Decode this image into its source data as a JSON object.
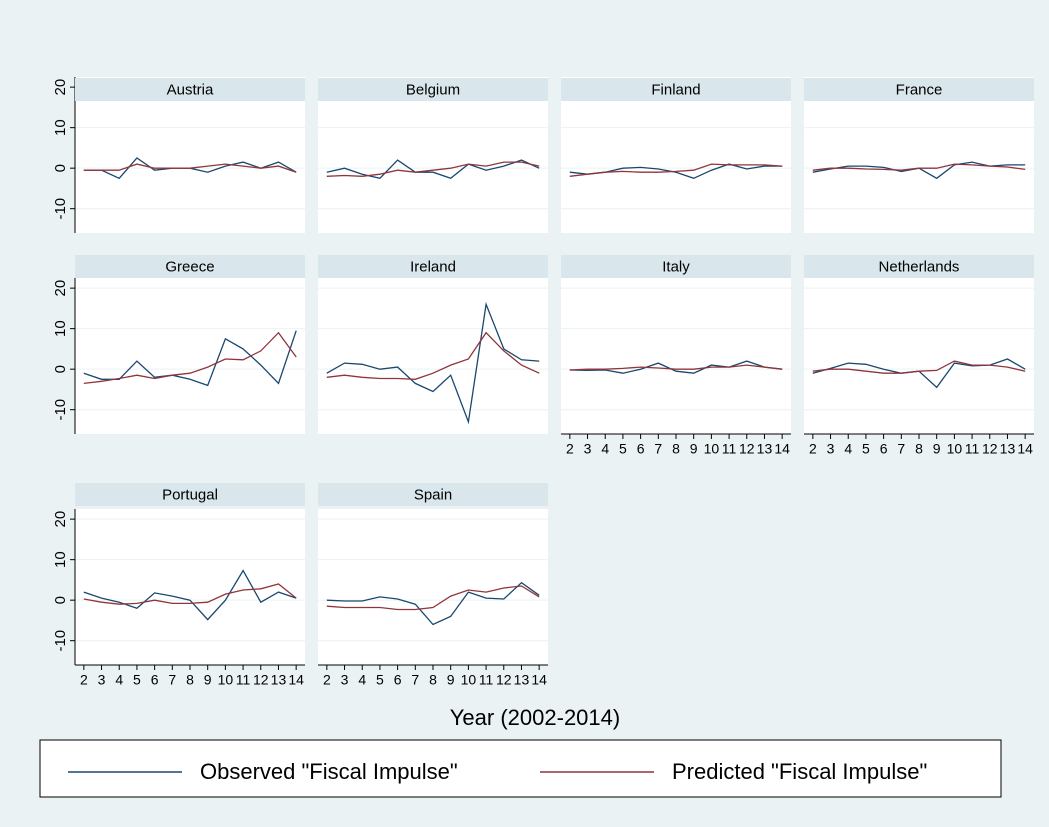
{
  "chart_data": [
    {
      "type": "line",
      "title": "Austria",
      "x": [
        2,
        3,
        4,
        5,
        6,
        7,
        8,
        9,
        10,
        11,
        12,
        13,
        14
      ],
      "xlim": [
        1.5,
        14.5
      ],
      "xticks": [
        2,
        3,
        4,
        5,
        6,
        7,
        8,
        9,
        10,
        11,
        12,
        13,
        14
      ],
      "ylim": [
        -16,
        22.5
      ],
      "yticks": [
        -10,
        0,
        10,
        20
      ],
      "grid": true,
      "series": [
        {
          "name": "Observed \"Fiscal Impulse\"",
          "color": "#1a476f",
          "values": [
            -0.5,
            -0.5,
            -2.5,
            2.5,
            -0.5,
            0,
            0,
            -1,
            0.5,
            1.5,
            0,
            1.5,
            -1
          ]
        },
        {
          "name": "Predicted \"Fiscal Impulse\"",
          "color": "#90353b",
          "values": [
            -0.5,
            -0.5,
            -0.5,
            1,
            0,
            0,
            0,
            0.5,
            1,
            0.5,
            0,
            0.5,
            -1
          ]
        }
      ]
    },
    {
      "type": "line",
      "title": "Belgium",
      "x": [
        2,
        3,
        4,
        5,
        6,
        7,
        8,
        9,
        10,
        11,
        12,
        13,
        14
      ],
      "xlim": [
        1.5,
        14.5
      ],
      "xticks": [
        2,
        3,
        4,
        5,
        6,
        7,
        8,
        9,
        10,
        11,
        12,
        13,
        14
      ],
      "ylim": [
        -16,
        22.5
      ],
      "yticks": [
        -10,
        0,
        10,
        20
      ],
      "grid": true,
      "series": [
        {
          "name": "Observed \"Fiscal Impulse\"",
          "color": "#1a476f",
          "values": [
            -1,
            0,
            -1.5,
            -2.5,
            2,
            -1,
            -1,
            -2.5,
            1,
            -0.5,
            0.5,
            2,
            0
          ]
        },
        {
          "name": "Predicted \"Fiscal Impulse\"",
          "color": "#90353b",
          "values": [
            -2,
            -1.8,
            -2,
            -1.5,
            -0.5,
            -1,
            -0.5,
            0,
            1,
            0.5,
            1.5,
            1.5,
            0.5
          ]
        }
      ]
    },
    {
      "type": "line",
      "title": "Finland",
      "x": [
        2,
        3,
        4,
        5,
        6,
        7,
        8,
        9,
        10,
        11,
        12,
        13,
        14
      ],
      "xlim": [
        1.5,
        14.5
      ],
      "xticks": [
        2,
        3,
        4,
        5,
        6,
        7,
        8,
        9,
        10,
        11,
        12,
        13,
        14
      ],
      "ylim": [
        -16,
        22.5
      ],
      "yticks": [
        -10,
        0,
        10,
        20
      ],
      "grid": true,
      "series": [
        {
          "name": "Observed \"Fiscal Impulse\"",
          "color": "#1a476f",
          "values": [
            -1,
            -1.5,
            -1,
            0,
            0.2,
            -0.2,
            -1,
            -2.5,
            -0.5,
            1,
            -0.2,
            0.5,
            0.5
          ]
        },
        {
          "name": "Predicted \"Fiscal Impulse\"",
          "color": "#90353b",
          "values": [
            -2,
            -1.5,
            -1,
            -0.8,
            -1,
            -1,
            -0.8,
            -0.5,
            1,
            0.8,
            0.8,
            0.8,
            0.5
          ]
        }
      ]
    },
    {
      "type": "line",
      "title": "France",
      "x": [
        2,
        3,
        4,
        5,
        6,
        7,
        8,
        9,
        10,
        11,
        12,
        13,
        14
      ],
      "xlim": [
        1.5,
        14.5
      ],
      "xticks": [
        2,
        3,
        4,
        5,
        6,
        7,
        8,
        9,
        10,
        11,
        12,
        13,
        14
      ],
      "ylim": [
        -16,
        22.5
      ],
      "yticks": [
        -10,
        0,
        10,
        20
      ],
      "grid": true,
      "series": [
        {
          "name": "Observed \"Fiscal Impulse\"",
          "color": "#1a476f",
          "values": [
            -1,
            -0.2,
            0.5,
            0.5,
            0.2,
            -0.8,
            0,
            -2.5,
            0.8,
            1.5,
            0.5,
            0.8,
            0.8
          ]
        },
        {
          "name": "Predicted \"Fiscal Impulse\"",
          "color": "#90353b",
          "values": [
            -0.5,
            0,
            0,
            -0.2,
            -0.3,
            -0.5,
            0,
            0,
            1,
            0.8,
            0.5,
            0.3,
            -0.3
          ]
        }
      ]
    },
    {
      "type": "line",
      "title": "Greece",
      "x": [
        2,
        3,
        4,
        5,
        6,
        7,
        8,
        9,
        10,
        11,
        12,
        13,
        14
      ],
      "xlim": [
        1.5,
        14.5
      ],
      "xticks": [
        2,
        3,
        4,
        5,
        6,
        7,
        8,
        9,
        10,
        11,
        12,
        13,
        14
      ],
      "ylim": [
        -16,
        22.5
      ],
      "yticks": [
        -10,
        0,
        10,
        20
      ],
      "grid": true,
      "series": [
        {
          "name": "Observed \"Fiscal Impulse\"",
          "color": "#1a476f",
          "values": [
            -1,
            -2.5,
            -2.5,
            2,
            -2,
            -1.5,
            -2.5,
            -4,
            7.5,
            5,
            1,
            -3.5,
            9.5
          ]
        },
        {
          "name": "Predicted \"Fiscal Impulse\"",
          "color": "#90353b",
          "values": [
            -3.5,
            -3,
            -2.3,
            -1.5,
            -2.3,
            -1.5,
            -1,
            0.5,
            2.5,
            2.3,
            4.5,
            9,
            3
          ]
        }
      ]
    },
    {
      "type": "line",
      "title": "Ireland",
      "x": [
        2,
        3,
        4,
        5,
        6,
        7,
        8,
        9,
        10,
        11,
        12,
        13,
        14
      ],
      "xlim": [
        1.5,
        14.5
      ],
      "xticks": [
        2,
        3,
        4,
        5,
        6,
        7,
        8,
        9,
        10,
        11,
        12,
        13,
        14
      ],
      "ylim": [
        -16,
        22.5
      ],
      "yticks": [
        -10,
        0,
        10,
        20
      ],
      "grid": true,
      "series": [
        {
          "name": "Observed \"Fiscal Impulse\"",
          "color": "#1a476f",
          "values": [
            -1,
            1.5,
            1.2,
            0,
            0.5,
            -3.5,
            -5.5,
            -1.5,
            -13,
            16,
            5,
            2.3,
            2
          ]
        },
        {
          "name": "Predicted \"Fiscal Impulse\"",
          "color": "#90353b",
          "values": [
            -2,
            -1.5,
            -2,
            -2.3,
            -2.3,
            -2.5,
            -1,
            1,
            2.5,
            9,
            4.5,
            1,
            -1
          ]
        }
      ]
    },
    {
      "type": "line",
      "title": "Italy",
      "x": [
        2,
        3,
        4,
        5,
        6,
        7,
        8,
        9,
        10,
        11,
        12,
        13,
        14
      ],
      "xlim": [
        1.5,
        14.5
      ],
      "xticks": [
        2,
        3,
        4,
        5,
        6,
        7,
        8,
        9,
        10,
        11,
        12,
        13,
        14
      ],
      "ylim": [
        -16,
        22.5
      ],
      "yticks": [
        -10,
        0,
        10,
        20
      ],
      "grid": true,
      "series": [
        {
          "name": "Observed \"Fiscal Impulse\"",
          "color": "#1a476f",
          "values": [
            -0.2,
            -0.3,
            -0.2,
            -1,
            0,
            1.5,
            -0.5,
            -1,
            1,
            0.5,
            2,
            0.5,
            0
          ]
        },
        {
          "name": "Predicted \"Fiscal Impulse\"",
          "color": "#90353b",
          "values": [
            -0.2,
            0,
            0,
            0.2,
            0.5,
            0.3,
            0,
            0,
            0.5,
            0.5,
            1,
            0.5,
            0
          ]
        }
      ]
    },
    {
      "type": "line",
      "title": "Netherlands",
      "x": [
        2,
        3,
        4,
        5,
        6,
        7,
        8,
        9,
        10,
        11,
        12,
        13,
        14
      ],
      "xlim": [
        1.5,
        14.5
      ],
      "xticks": [
        2,
        3,
        4,
        5,
        6,
        7,
        8,
        9,
        10,
        11,
        12,
        13,
        14
      ],
      "ylim": [
        -16,
        22.5
      ],
      "yticks": [
        -10,
        0,
        10,
        20
      ],
      "grid": true,
      "series": [
        {
          "name": "Observed \"Fiscal Impulse\"",
          "color": "#1a476f",
          "values": [
            -1,
            0.2,
            1.5,
            1.2,
            0,
            -1,
            -0.5,
            -4.5,
            1.5,
            0.8,
            1,
            2.5,
            0
          ]
        },
        {
          "name": "Predicted \"Fiscal Impulse\"",
          "color": "#90353b",
          "values": [
            -0.5,
            0,
            0,
            -0.5,
            -1,
            -1,
            -0.5,
            -0.3,
            2,
            1,
            1,
            0.5,
            -0.5
          ]
        }
      ]
    },
    {
      "type": "line",
      "title": "Portugal",
      "x": [
        2,
        3,
        4,
        5,
        6,
        7,
        8,
        9,
        10,
        11,
        12,
        13,
        14
      ],
      "xlim": [
        1.5,
        14.5
      ],
      "xticks": [
        2,
        3,
        4,
        5,
        6,
        7,
        8,
        9,
        10,
        11,
        12,
        13,
        14
      ],
      "ylim": [
        -16,
        22.5
      ],
      "yticks": [
        -10,
        0,
        10,
        20
      ],
      "grid": true,
      "series": [
        {
          "name": "Observed \"Fiscal Impulse\"",
          "color": "#1a476f",
          "values": [
            2,
            0.5,
            -0.5,
            -2,
            1.8,
            1,
            0,
            -4.8,
            0,
            7.3,
            -0.5,
            2,
            0.5
          ]
        },
        {
          "name": "Predicted \"Fiscal Impulse\"",
          "color": "#90353b",
          "values": [
            0.3,
            -0.5,
            -1,
            -0.8,
            0,
            -0.8,
            -0.8,
            -0.5,
            1.5,
            2.5,
            2.8,
            4,
            0.5
          ]
        }
      ]
    },
    {
      "type": "line",
      "title": "Spain",
      "x": [
        2,
        3,
        4,
        5,
        6,
        7,
        8,
        9,
        10,
        11,
        12,
        13,
        14
      ],
      "xlim": [
        1.5,
        14.5
      ],
      "xticks": [
        2,
        3,
        4,
        5,
        6,
        7,
        8,
        9,
        10,
        11,
        12,
        13,
        14
      ],
      "ylim": [
        -16,
        22.5
      ],
      "yticks": [
        -10,
        0,
        10,
        20
      ],
      "grid": true,
      "series": [
        {
          "name": "Observed \"Fiscal Impulse\"",
          "color": "#1a476f",
          "values": [
            0,
            -0.2,
            -0.2,
            0.8,
            0.3,
            -1,
            -6,
            -4,
            2,
            0.5,
            0.3,
            4.3,
            1.2
          ]
        },
        {
          "name": "Predicted \"Fiscal Impulse\"",
          "color": "#90353b",
          "values": [
            -1.5,
            -1.8,
            -1.8,
            -1.8,
            -2.3,
            -2.3,
            -1.8,
            1,
            2.5,
            2,
            3,
            3.5,
            0.8
          ]
        }
      ]
    }
  ],
  "x_label": "Year (2002-2014)"
}
